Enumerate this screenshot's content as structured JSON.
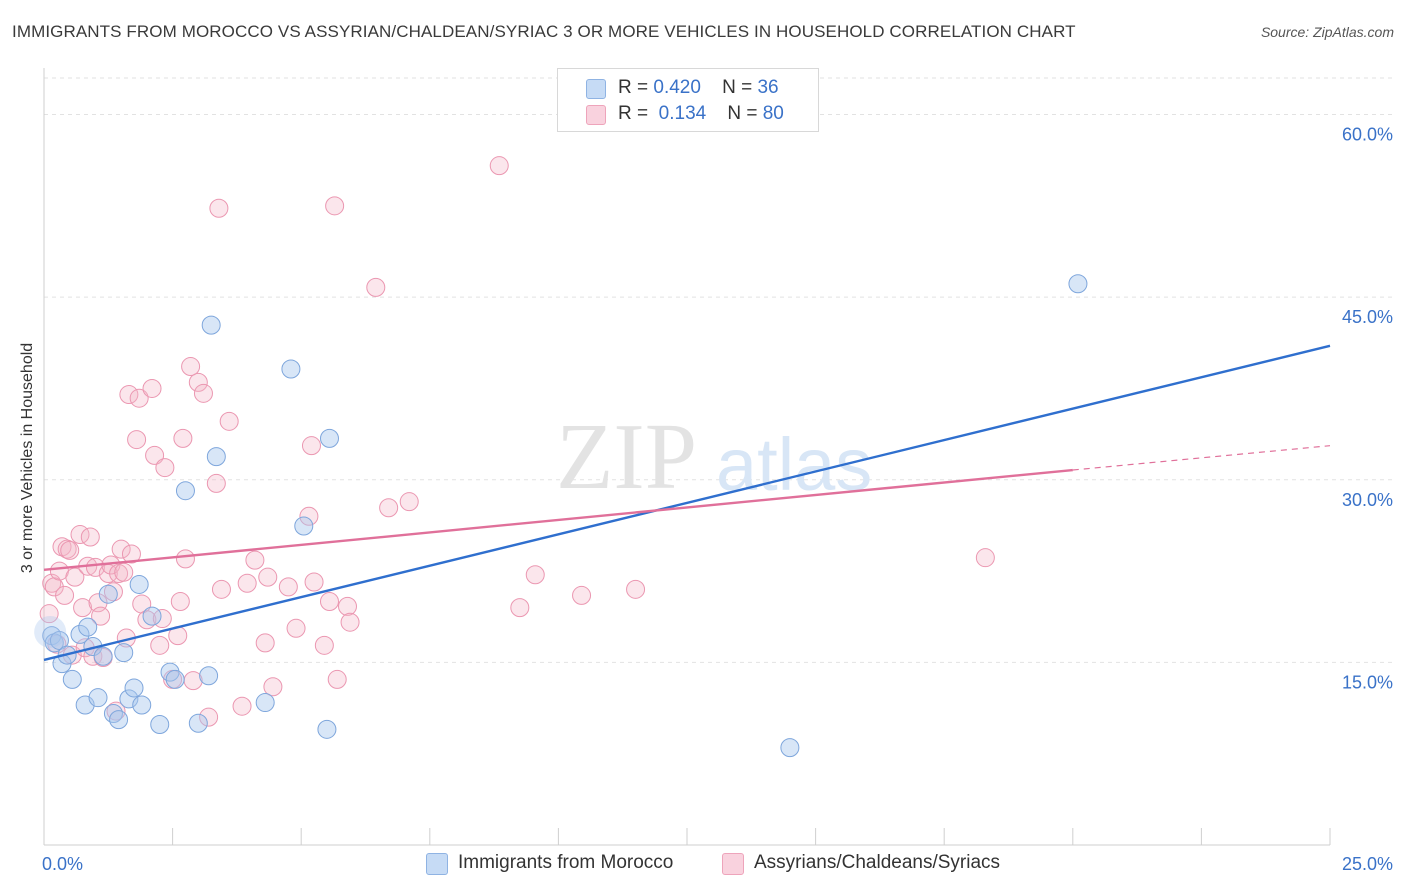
{
  "title": "IMMIGRANTS FROM MOROCCO VS ASSYRIAN/CHALDEAN/SYRIAC 3 OR MORE VEHICLES IN HOUSEHOLD CORRELATION CHART",
  "source": "Source: ZipAtlas.com",
  "watermark": {
    "zip": "ZIP",
    "atlas": "atlas"
  },
  "legend": {
    "rows": [
      {
        "r_label": "R =",
        "r_value": "0.420",
        "n_label": "N =",
        "n_value": "36",
        "color": "#a9c7ee"
      },
      {
        "r_label": "R =",
        "r_value": "0.134",
        "n_label": "N =",
        "n_value": "80",
        "color": "#f4b6c8"
      }
    ]
  },
  "bottom_legend": [
    {
      "label": "Immigrants from Morocco",
      "color": "#a9c7ee"
    },
    {
      "label": "Assyrians/Chaldeans/Syriacs",
      "color": "#f4b6c8"
    }
  ],
  "chart_data": {
    "type": "scatter",
    "title": "IMMIGRANTS FROM MOROCCO VS ASSYRIAN/CHALDEAN/SYRIAC 3 OR MORE VEHICLES IN HOUSEHOLD CORRELATION CHART",
    "xlabel": "",
    "ylabel": "3 or more Vehicles in Household",
    "xlim": [
      0,
      25
    ],
    "ylim": [
      0,
      63
    ],
    "x_tick_labels": [
      {
        "value": 0,
        "label": "0.0%"
      },
      {
        "value": 25,
        "label": "25.0%"
      }
    ],
    "y_tick_labels": [
      {
        "value": 15,
        "label": "15.0%"
      },
      {
        "value": 30,
        "label": "30.0%"
      },
      {
        "value": 45,
        "label": "45.0%"
      },
      {
        "value": 60,
        "label": "60.0%"
      }
    ],
    "grid": true,
    "series": [
      {
        "name": "Immigrants from Morocco",
        "color": "#a9c7ee",
        "line_color": "#2f6fce",
        "trend": {
          "x": [
            0,
            25
          ],
          "y": [
            15.2,
            41.0
          ]
        },
        "points": [
          [
            0.15,
            17.2
          ],
          [
            0.2,
            16.6
          ],
          [
            0.3,
            16.8
          ],
          [
            0.35,
            14.9
          ],
          [
            0.45,
            15.6
          ],
          [
            0.55,
            13.6
          ],
          [
            0.7,
            17.3
          ],
          [
            0.8,
            11.5
          ],
          [
            0.85,
            17.9
          ],
          [
            0.95,
            16.3
          ],
          [
            1.05,
            12.1
          ],
          [
            1.15,
            15.5
          ],
          [
            1.25,
            20.6
          ],
          [
            1.35,
            10.8
          ],
          [
            1.45,
            10.3
          ],
          [
            1.55,
            15.8
          ],
          [
            1.65,
            12.0
          ],
          [
            1.75,
            12.9
          ],
          [
            1.85,
            21.4
          ],
          [
            1.9,
            11.5
          ],
          [
            2.1,
            18.8
          ],
          [
            2.25,
            9.9
          ],
          [
            2.45,
            14.2
          ],
          [
            2.55,
            13.6
          ],
          [
            2.75,
            29.1
          ],
          [
            3.0,
            10.0
          ],
          [
            3.2,
            13.9
          ],
          [
            3.25,
            42.7
          ],
          [
            3.35,
            31.9
          ],
          [
            4.3,
            11.7
          ],
          [
            4.8,
            39.1
          ],
          [
            5.05,
            26.2
          ],
          [
            5.5,
            9.5
          ],
          [
            5.55,
            33.4
          ],
          [
            14.5,
            8.0
          ],
          [
            20.1,
            46.1
          ]
        ]
      },
      {
        "name": "Assyrians/Chaldeans/Syriacs",
        "color": "#f4b6c8",
        "line_color": "#e0709a",
        "trend": {
          "x": [
            0,
            20.0
          ],
          "y": [
            22.6,
            30.8
          ]
        },
        "trend_dashed": {
          "x": [
            20.0,
            25
          ],
          "y": [
            30.8,
            32.8
          ]
        },
        "points": [
          [
            0.1,
            19.0
          ],
          [
            0.15,
            21.5
          ],
          [
            0.2,
            21.2
          ],
          [
            0.3,
            22.5
          ],
          [
            0.35,
            24.5
          ],
          [
            0.4,
            20.5
          ],
          [
            0.45,
            24.3
          ],
          [
            0.5,
            24.2
          ],
          [
            0.55,
            15.6
          ],
          [
            0.6,
            22.0
          ],
          [
            0.7,
            25.5
          ],
          [
            0.75,
            19.5
          ],
          [
            0.8,
            16.2
          ],
          [
            0.85,
            22.9
          ],
          [
            0.9,
            25.3
          ],
          [
            0.95,
            15.5
          ],
          [
            1.0,
            22.8
          ],
          [
            1.05,
            19.9
          ],
          [
            1.1,
            18.8
          ],
          [
            1.15,
            15.4
          ],
          [
            1.25,
            22.3
          ],
          [
            1.3,
            23.0
          ],
          [
            1.35,
            20.8
          ],
          [
            1.4,
            11.0
          ],
          [
            1.45,
            22.3
          ],
          [
            1.5,
            24.3
          ],
          [
            1.55,
            22.4
          ],
          [
            1.6,
            17.0
          ],
          [
            1.65,
            37.0
          ],
          [
            1.7,
            23.9
          ],
          [
            1.8,
            33.3
          ],
          [
            1.85,
            36.7
          ],
          [
            1.9,
            19.8
          ],
          [
            2.0,
            18.5
          ],
          [
            2.1,
            37.5
          ],
          [
            2.15,
            32.0
          ],
          [
            2.25,
            16.4
          ],
          [
            2.3,
            18.6
          ],
          [
            2.35,
            31.0
          ],
          [
            2.5,
            13.6
          ],
          [
            2.6,
            17.2
          ],
          [
            2.65,
            20.0
          ],
          [
            2.7,
            33.4
          ],
          [
            2.75,
            23.5
          ],
          [
            2.85,
            39.3
          ],
          [
            2.9,
            13.5
          ],
          [
            3.0,
            38.0
          ],
          [
            3.1,
            37.1
          ],
          [
            3.2,
            10.5
          ],
          [
            3.35,
            29.7
          ],
          [
            3.4,
            52.3
          ],
          [
            3.45,
            21.0
          ],
          [
            3.6,
            34.8
          ],
          [
            3.85,
            11.4
          ],
          [
            3.95,
            21.5
          ],
          [
            4.1,
            23.4
          ],
          [
            4.3,
            16.6
          ],
          [
            4.35,
            22.0
          ],
          [
            4.45,
            13.0
          ],
          [
            4.75,
            21.2
          ],
          [
            4.9,
            17.8
          ],
          [
            5.15,
            27.0
          ],
          [
            5.2,
            32.8
          ],
          [
            5.25,
            21.6
          ],
          [
            5.45,
            16.4
          ],
          [
            5.55,
            20.0
          ],
          [
            5.65,
            52.5
          ],
          [
            5.7,
            13.6
          ],
          [
            5.9,
            19.6
          ],
          [
            5.95,
            18.3
          ],
          [
            6.45,
            45.8
          ],
          [
            6.7,
            27.7
          ],
          [
            7.1,
            28.2
          ],
          [
            9.25,
            19.5
          ],
          [
            9.55,
            22.2
          ],
          [
            8.85,
            55.8
          ],
          [
            10.45,
            20.5
          ],
          [
            11.5,
            21.0
          ],
          [
            18.3,
            23.6
          ],
          [
            0.25,
            16.5
          ]
        ]
      }
    ]
  }
}
